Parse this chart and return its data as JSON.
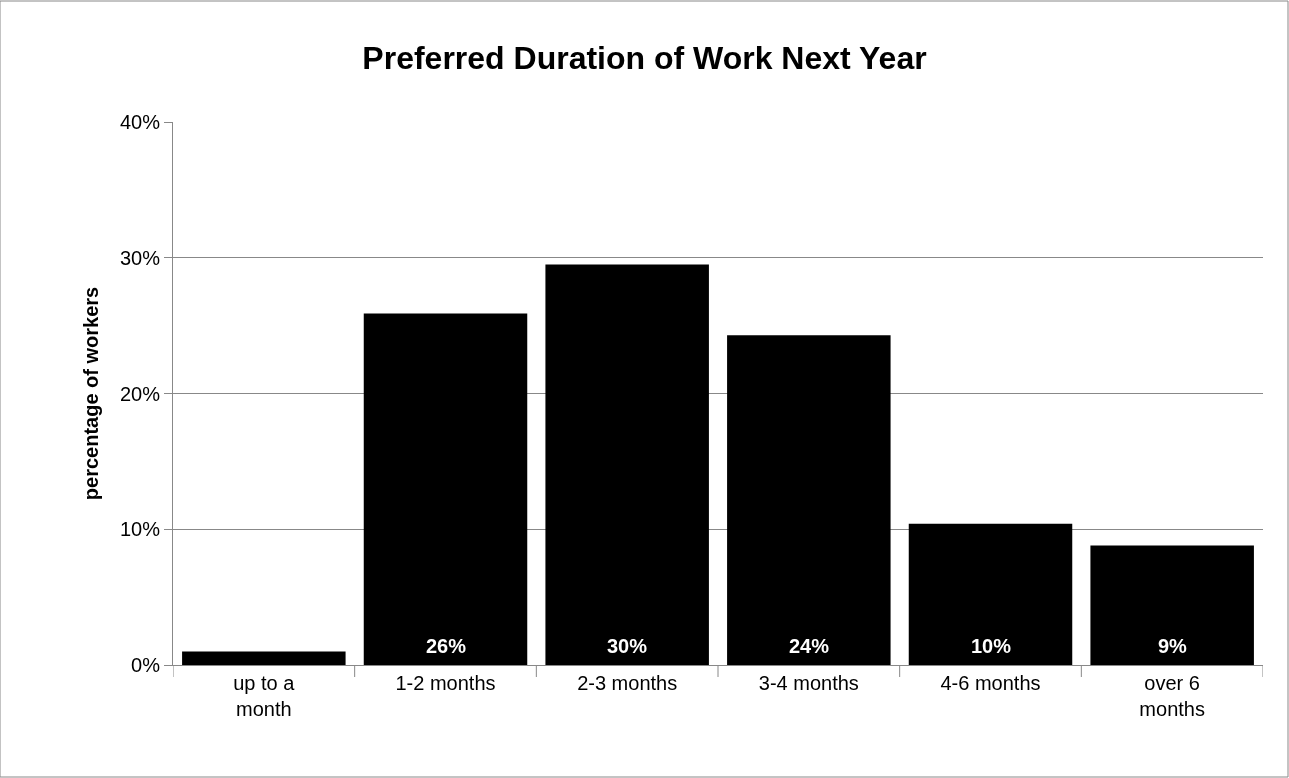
{
  "chart_data": {
    "type": "bar",
    "title": "Preferred Duration of Work Next Year",
    "ylabel": "percentage of workers",
    "categories": [
      "up to a month",
      "1-2 months",
      "2-3 months",
      "3-4 months",
      "4-6 months",
      "over 6 months"
    ],
    "values": [
      1.0,
      25.9,
      29.5,
      24.3,
      10.4,
      8.8
    ],
    "value_labels": [
      null,
      "26%",
      "30%",
      "24%",
      "10%",
      "9%"
    ],
    "color": "#000000",
    "ylim": [
      0,
      40
    ],
    "yticks": [
      {
        "value": 0,
        "label": "0%"
      },
      {
        "value": 10,
        "label": "10%"
      },
      {
        "value": 20,
        "label": "20%"
      },
      {
        "value": 30,
        "label": "30%"
      },
      {
        "value": 40,
        "label": "40%"
      }
    ],
    "grid": "y",
    "legend": false
  }
}
